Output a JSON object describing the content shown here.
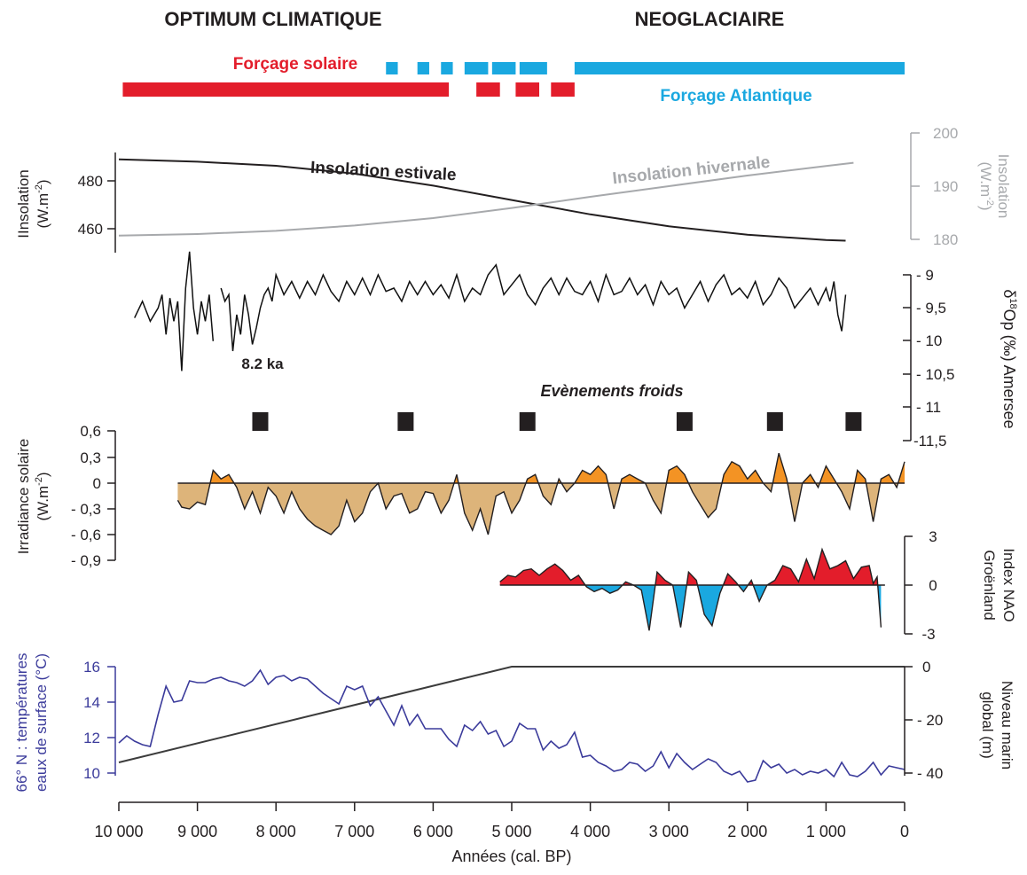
{
  "header": {
    "left_title": "OPTIMUM CLIMATIQUE",
    "right_title": "NEOGLACIAIRE",
    "solar_forcing_label": "Forçage solaire",
    "atlantic_forcing_label": "Forçage Atlantique"
  },
  "colors": {
    "solar_forcing": "#e31d2b",
    "atlantic_forcing": "#1aa8e0",
    "insolation_summer": "#231f20",
    "insolation_winter": "#a7a9ac",
    "irradiance_positive": "#f39324",
    "irradiance_negative": "#ddb47a",
    "nao_positive": "#e31d2b",
    "nao_negative": "#1aa8e0",
    "sst": "#3b3b9b",
    "sea_level": "#3c3c3c",
    "cold_event": "#231f20"
  },
  "chart_data": [
    {
      "type": "bar",
      "name": "forcing_bars",
      "x_unit": "years cal. BP",
      "solar_forcing": [
        [
          9950,
          5800
        ],
        [
          5450,
          5150
        ],
        [
          4950,
          4650
        ],
        [
          4500,
          4200
        ]
      ],
      "atlantic_forcing": [
        [
          6600,
          6450
        ],
        [
          6200,
          6050
        ],
        [
          5900,
          5750
        ],
        [
          5600,
          5300
        ],
        [
          5250,
          4950
        ],
        [
          4900,
          4550
        ],
        [
          4200,
          0
        ]
      ]
    },
    {
      "type": "line",
      "ylabel": "Insolation (W.m-2)",
      "ylabel_right": "Insolation (W.m-2)",
      "ylim": [
        452,
        490
      ],
      "ylim_right": [
        180,
        200
      ],
      "yticks": [
        460,
        480
      ],
      "yticks_right": [
        180,
        190,
        200
      ],
      "series": [
        {
          "name": "Insolation estivale",
          "x": [
            10000,
            9000,
            8000,
            7000,
            6000,
            5000,
            4000,
            3000,
            2000,
            1000,
            750
          ],
          "values": [
            489.0,
            488.0,
            486.3,
            483.0,
            478.0,
            472.0,
            466.0,
            461.0,
            457.5,
            455.3,
            455.0
          ]
        },
        {
          "name": "Insolation hivernale",
          "x": [
            10000,
            9000,
            8000,
            7000,
            6000,
            5000,
            4000,
            3000,
            2000,
            1000,
            650
          ],
          "values": [
            180.7,
            181.0,
            181.6,
            182.6,
            184.0,
            185.9,
            188.0,
            190.0,
            192.0,
            193.8,
            194.4
          ]
        }
      ],
      "annotations": [
        "8.2 ka"
      ]
    },
    {
      "type": "line",
      "name": "δ18Op (‰) Amersee",
      "ylabel_right": "δ18Op (‰) Amersee",
      "ylim": [
        -11.5,
        -9
      ],
      "yticks": [
        -9,
        -9.5,
        -10,
        -10.5,
        -11,
        -11.5
      ],
      "ytick_labels": [
        "- 9",
        "- 9,5",
        "- 10",
        "- 10,5",
        "- 11",
        "-11,5"
      ],
      "x": [
        9800,
        9700,
        9600,
        9500,
        9450,
        9400,
        9350,
        9300,
        9250,
        9200,
        9150,
        9100,
        9050,
        9000,
        8950,
        8900,
        8850,
        8800,
        8750,
        8700,
        8650,
        8600,
        8550,
        8500,
        8450,
        8400,
        8350,
        8300,
        8250,
        8200,
        8150,
        8100,
        8050,
        8000,
        7900,
        7800,
        7700,
        7600,
        7500,
        7400,
        7300,
        7200,
        7100,
        7000,
        6900,
        6800,
        6700,
        6600,
        6500,
        6400,
        6300,
        6200,
        6100,
        6000,
        5900,
        5800,
        5700,
        5600,
        5500,
        5400,
        5300,
        5200,
        5100,
        5000,
        4900,
        4800,
        4700,
        4600,
        4500,
        4400,
        4300,
        4200,
        4100,
        4000,
        3900,
        3800,
        3700,
        3600,
        3500,
        3400,
        3300,
        3200,
        3100,
        3000,
        2900,
        2800,
        2700,
        2600,
        2500,
        2400,
        2300,
        2200,
        2100,
        2000,
        1900,
        1800,
        1700,
        1600,
        1500,
        1400,
        1300,
        1200,
        1100,
        1000,
        950,
        900,
        850,
        800,
        750
      ],
      "values": [
        -9.65,
        -9.4,
        -9.7,
        -9.5,
        -9.3,
        -9.9,
        -9.35,
        -9.7,
        -9.4,
        -10.45,
        -9.2,
        -8.65,
        -9.5,
        -9.9,
        -9.4,
        -9.7,
        -9.3,
        -10.0,
        null,
        -9.2,
        -9.4,
        -9.3,
        -10.15,
        -9.6,
        -9.9,
        -9.3,
        -9.6,
        -10.05,
        -9.8,
        -9.5,
        -9.3,
        -9.2,
        -9.4,
        -9.0,
        -9.3,
        -9.1,
        -9.35,
        -9.1,
        -9.3,
        -9.0,
        -9.25,
        -9.4,
        -9.1,
        -9.3,
        -9.05,
        -9.3,
        -9.0,
        -9.25,
        -9.2,
        -9.4,
        -9.1,
        -9.3,
        -9.1,
        -9.3,
        -9.15,
        -9.35,
        -9.0,
        -9.4,
        -9.2,
        -9.3,
        -9.0,
        -8.85,
        -9.3,
        -9.15,
        -9.0,
        -9.3,
        -9.45,
        -9.2,
        -9.05,
        -9.3,
        -9.05,
        -9.25,
        -9.3,
        -9.1,
        -9.4,
        -9.0,
        -9.3,
        -9.25,
        -9.05,
        -9.3,
        -9.15,
        -9.45,
        -9.1,
        -9.3,
        -9.2,
        -9.5,
        -9.3,
        -9.1,
        -9.4,
        -9.15,
        -9.0,
        -9.3,
        -9.2,
        -9.35,
        -9.1,
        -9.45,
        -9.3,
        -9.05,
        -9.2,
        -9.5,
        -9.35,
        -9.2,
        -9.45,
        -9.2,
        -9.4,
        -9.1,
        -9.6,
        -9.85,
        -9.3
      ]
    },
    {
      "type": "scatter",
      "name": "Evènements froids",
      "label": "Evènements froids",
      "x": [
        8200,
        6350,
        4800,
        2800,
        1650,
        650
      ]
    },
    {
      "type": "area",
      "name": "Irradiance solaire",
      "ylabel": "Irradiance solaire (W.m-2)",
      "ylim": [
        -0.9,
        0.6
      ],
      "yticks": [
        0.6,
        0.3,
        0,
        -0.3,
        -0.6,
        -0.9
      ],
      "ytick_labels": [
        "0,6",
        "0,3",
        "0",
        "- 0,3",
        "- 0,6",
        "- 0,9"
      ],
      "x": [
        9250,
        9200,
        9100,
        9000,
        8900,
        8800,
        8700,
        8600,
        8500,
        8400,
        8300,
        8200,
        8100,
        8000,
        7900,
        7800,
        7700,
        7600,
        7500,
        7400,
        7300,
        7200,
        7100,
        7000,
        6900,
        6800,
        6700,
        6600,
        6500,
        6400,
        6300,
        6200,
        6100,
        6000,
        5900,
        5800,
        5700,
        5600,
        5500,
        5400,
        5300,
        5200,
        5100,
        5000,
        4900,
        4800,
        4700,
        4600,
        4500,
        4400,
        4300,
        4200,
        4100,
        4000,
        3900,
        3800,
        3700,
        3600,
        3500,
        3400,
        3300,
        3200,
        3100,
        3000,
        2900,
        2800,
        2700,
        2600,
        2500,
        2400,
        2300,
        2200,
        2100,
        2000,
        1900,
        1800,
        1700,
        1600,
        1500,
        1400,
        1300,
        1200,
        1100,
        1000,
        900,
        800,
        700,
        600,
        500,
        400,
        300,
        200,
        100,
        0
      ],
      "values": [
        -0.2,
        -0.28,
        -0.3,
        -0.22,
        -0.25,
        0.15,
        0.05,
        0.1,
        -0.05,
        -0.3,
        -0.1,
        -0.35,
        -0.05,
        -0.15,
        -0.35,
        -0.1,
        -0.3,
        -0.42,
        -0.5,
        -0.55,
        -0.6,
        -0.5,
        -0.2,
        -0.45,
        -0.35,
        -0.1,
        0.0,
        -0.3,
        -0.15,
        -0.12,
        -0.35,
        -0.3,
        -0.1,
        -0.12,
        -0.35,
        -0.2,
        0.1,
        -0.35,
        -0.55,
        -0.3,
        -0.6,
        -0.15,
        -0.1,
        -0.35,
        -0.2,
        0.05,
        0.1,
        -0.15,
        -0.25,
        0.05,
        -0.1,
        0.0,
        0.15,
        0.1,
        0.2,
        0.1,
        -0.3,
        0.05,
        0.1,
        0.05,
        0.0,
        -0.2,
        -0.35,
        0.15,
        0.2,
        0.1,
        -0.1,
        -0.25,
        -0.4,
        -0.3,
        0.1,
        0.25,
        0.2,
        0.05,
        0.15,
        0.0,
        -0.1,
        0.35,
        0.05,
        -0.45,
        0.0,
        0.1,
        -0.05,
        0.2,
        0.05,
        -0.1,
        -0.3,
        0.15,
        0.05,
        -0.45,
        0.05,
        0.1,
        -0.05,
        0.25
      ]
    },
    {
      "type": "area",
      "name": "Index NAO Groënland",
      "ylabel_right": "Index NAO Groënland",
      "ylim": [
        -3,
        3
      ],
      "yticks": [
        3,
        0,
        -3
      ],
      "x": [
        5150,
        5050,
        4950,
        4850,
        4750,
        4650,
        4550,
        4450,
        4350,
        4250,
        4150,
        4050,
        3950,
        3850,
        3750,
        3650,
        3550,
        3450,
        3350,
        3250,
        3150,
        3050,
        2950,
        2850,
        2750,
        2650,
        2550,
        2450,
        2350,
        2250,
        2150,
        2050,
        1950,
        1850,
        1750,
        1650,
        1550,
        1450,
        1350,
        1250,
        1150,
        1050,
        950,
        850,
        750,
        650,
        550,
        450,
        400,
        350,
        300
      ],
      "values": [
        0.2,
        0.6,
        0.5,
        0.9,
        1.0,
        0.6,
        1.0,
        1.3,
        0.9,
        0.3,
        0.6,
        -0.1,
        -0.4,
        -0.2,
        -0.5,
        -0.3,
        0.2,
        0.0,
        -0.3,
        -2.8,
        0.8,
        0.3,
        0.0,
        -2.6,
        0.8,
        0.3,
        -1.8,
        -2.5,
        -0.5,
        0.7,
        0.2,
        -0.4,
        0.3,
        -1.0,
        0.0,
        0.3,
        1.2,
        1.0,
        0.2,
        1.6,
        0.4,
        2.2,
        1.0,
        1.2,
        1.5,
        0.4,
        1.1,
        1.2,
        0.1,
        0.5,
        -2.6
      ]
    },
    {
      "type": "line",
      "name": "66° N : températures eaux de surface (°C)",
      "ylabel": "66° N : températures eaux de surface (°C)",
      "xlabel": "Années (cal. BP)",
      "ylim": [
        9.4,
        16
      ],
      "yticks": [
        10,
        12,
        14,
        16
      ],
      "x": [
        10000,
        9900,
        9800,
        9700,
        9600,
        9500,
        9400,
        9300,
        9200,
        9100,
        9000,
        8900,
        8800,
        8700,
        8600,
        8500,
        8400,
        8300,
        8200,
        8100,
        8000,
        7900,
        7800,
        7700,
        7600,
        7500,
        7400,
        7300,
        7200,
        7100,
        7000,
        6900,
        6800,
        6700,
        6600,
        6500,
        6400,
        6300,
        6200,
        6100,
        6000,
        5900,
        5800,
        5700,
        5600,
        5500,
        5400,
        5300,
        5200,
        5100,
        5000,
        4900,
        4800,
        4700,
        4600,
        4500,
        4400,
        4300,
        4200,
        4100,
        4000,
        3900,
        3800,
        3700,
        3600,
        3500,
        3400,
        3300,
        3200,
        3100,
        3000,
        2900,
        2800,
        2700,
        2600,
        2500,
        2400,
        2300,
        2200,
        2100,
        2000,
        1900,
        1800,
        1700,
        1600,
        1500,
        1400,
        1300,
        1200,
        1100,
        1000,
        900,
        800,
        700,
        600,
        500,
        400,
        300,
        200,
        100,
        0
      ],
      "values": [
        11.7,
        12.1,
        11.8,
        11.6,
        11.5,
        13.3,
        14.9,
        14.0,
        14.1,
        15.2,
        15.1,
        15.1,
        15.3,
        15.4,
        15.2,
        15.1,
        14.9,
        15.2,
        15.8,
        15.0,
        15.4,
        15.5,
        15.2,
        15.4,
        15.3,
        14.9,
        14.5,
        14.2,
        13.9,
        14.9,
        14.7,
        14.9,
        13.8,
        14.3,
        13.5,
        12.7,
        13.8,
        12.7,
        13.3,
        12.5,
        12.5,
        12.5,
        11.9,
        11.5,
        12.7,
        12.4,
        12.9,
        12.2,
        12.4,
        11.5,
        11.8,
        12.8,
        12.5,
        12.5,
        11.3,
        11.8,
        11.4,
        11.6,
        12.3,
        10.9,
        11.0,
        10.6,
        10.4,
        10.1,
        10.2,
        10.6,
        10.5,
        10.1,
        10.4,
        11.2,
        10.3,
        11.1,
        10.6,
        10.2,
        10.5,
        10.8,
        10.6,
        10.1,
        9.9,
        10.1,
        9.5,
        9.6,
        10.7,
        10.3,
        10.5,
        10.0,
        10.2,
        9.9,
        10.1,
        10.0,
        10.2,
        9.8,
        10.6,
        9.9,
        9.8,
        10.1,
        10.6,
        9.9,
        10.4,
        10.3,
        10.2
      ]
    },
    {
      "type": "line",
      "name": "Niveau marin global (m)",
      "ylabel_right": "Niveau marin global (m)",
      "ylim": [
        -45,
        0
      ],
      "yticks": [
        0,
        -20,
        -40
      ],
      "ytick_labels": [
        "0",
        "- 20",
        "- 40"
      ],
      "x": [
        10000,
        5000,
        0
      ],
      "values": [
        -36,
        0,
        0
      ]
    },
    {
      "type": "table",
      "name": "x_axis",
      "xlabel": "Années (cal. BP)",
      "xlim": [
        10000,
        0
      ],
      "xticks": [
        10000,
        9000,
        8000,
        7000,
        6000,
        5000,
        4000,
        3000,
        2000,
        1000,
        0
      ],
      "xtick_labels": [
        "10 000",
        "9 000",
        "8 000",
        "7 000",
        "6 000",
        "5 000",
        "4 000",
        "3 000",
        "2 000",
        "1 000",
        "0"
      ]
    }
  ],
  "labels": {
    "insolation_summer": "Insolation estivale",
    "insolation_winter": "Insolation hivernale",
    "insolation_left_axis_l1": "IInsolation",
    "insolation_left_axis_l2": "(W.m",
    "insolation_right_axis_l1": "Insolation",
    "insolation_right_axis_l2": "(W.m",
    "unit_exponent": "-2",
    "unit_close": ")",
    "delta_axis_d": "δ",
    "delta_axis_sup": "18",
    "delta_axis_rest": "Op (‰) Amersee",
    "event_8_2ka": "8.2 ka",
    "cold_events": "Evènements froids",
    "irradiance_axis_l1": "Irradiance solaire",
    "irradiance_axis_l2": "(W.m",
    "nao_axis_l1": "Index NAO",
    "nao_axis_l2": "Groënland",
    "sst_axis_l1": "66° N : températures",
    "sst_axis_l2": "eaux de surface (°C)",
    "sea_level_axis_l1": "Niveau marin",
    "sea_level_axis_l2": "global (m)",
    "x_axis_label": "Années (cal. BP)"
  }
}
